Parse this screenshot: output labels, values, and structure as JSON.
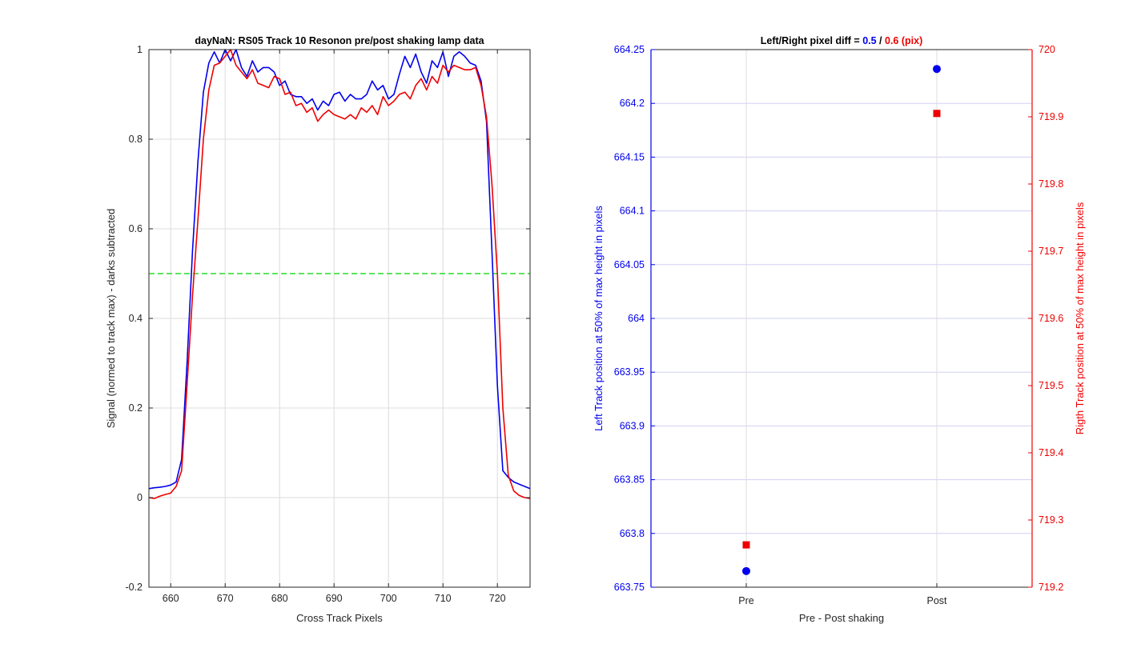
{
  "chart_data": [
    {
      "type": "line",
      "title": "dayNaN: RS05  Track 10 Resonon pre/post shaking lamp data",
      "xlabel": "Cross Track Pixels",
      "ylabel": "Signal (normed to track max) - darks subtracted",
      "xlim": [
        656,
        726
      ],
      "ylim": [
        -0.2,
        1
      ],
      "xticks": [
        "660",
        "670",
        "680",
        "690",
        "700",
        "710",
        "720"
      ],
      "yticks": [
        "-0.2",
        "0",
        "0.2",
        "0.4",
        "0.6",
        "0.8",
        "1"
      ],
      "grid": true,
      "reference_line": {
        "y": 0.5,
        "color": "#22dd22",
        "style": "dashed"
      },
      "series": [
        {
          "color": "#0000ee",
          "x": [
            656,
            657,
            658,
            659,
            660,
            661,
            662,
            663,
            664,
            665,
            666,
            667,
            668,
            669,
            670,
            671,
            672,
            673,
            674,
            675,
            676,
            677,
            678,
            679,
            680,
            681,
            682,
            683,
            684,
            685,
            686,
            687,
            688,
            689,
            690,
            691,
            692,
            693,
            694,
            695,
            696,
            697,
            698,
            699,
            700,
            701,
            702,
            703,
            704,
            705,
            706,
            707,
            708,
            709,
            710,
            711,
            712,
            713,
            714,
            715,
            716,
            717,
            718,
            719,
            720,
            721,
            722,
            723,
            724,
            725,
            726
          ],
          "values": [
            0.02,
            0.022,
            0.023,
            0.025,
            0.028,
            0.035,
            0.085,
            0.3,
            0.55,
            0.75,
            0.905,
            0.97,
            0.995,
            0.97,
            1.0,
            0.975,
            1.0,
            0.96,
            0.94,
            0.975,
            0.95,
            0.96,
            0.96,
            0.95,
            0.92,
            0.93,
            0.9,
            0.895,
            0.895,
            0.88,
            0.89,
            0.865,
            0.885,
            0.875,
            0.9,
            0.905,
            0.885,
            0.9,
            0.89,
            0.89,
            0.9,
            0.93,
            0.91,
            0.92,
            0.89,
            0.9,
            0.945,
            0.985,
            0.96,
            0.99,
            0.95,
            0.925,
            0.975,
            0.96,
            0.995,
            0.94,
            0.985,
            0.995,
            0.985,
            0.97,
            0.965,
            0.93,
            0.84,
            0.55,
            0.25,
            0.06,
            0.045,
            0.035,
            0.03,
            0.025,
            0.02
          ]
        },
        {
          "color": "#ee0000",
          "x": [
            656,
            657,
            658,
            659,
            660,
            661,
            662,
            663,
            664,
            665,
            666,
            667,
            668,
            669,
            670,
            671,
            672,
            673,
            674,
            675,
            676,
            677,
            678,
            679,
            680,
            681,
            682,
            683,
            684,
            685,
            686,
            687,
            688,
            689,
            690,
            691,
            692,
            693,
            694,
            695,
            696,
            697,
            698,
            699,
            700,
            701,
            702,
            703,
            704,
            705,
            706,
            707,
            708,
            709,
            710,
            711,
            712,
            713,
            714,
            715,
            716,
            717,
            718,
            719,
            720,
            721,
            722,
            723,
            724,
            725,
            726
          ],
          "values": [
            0.0,
            -0.002,
            0.003,
            0.007,
            0.01,
            0.025,
            0.06,
            0.25,
            0.45,
            0.62,
            0.8,
            0.91,
            0.965,
            0.97,
            0.985,
            1.0,
            0.965,
            0.95,
            0.935,
            0.955,
            0.925,
            0.92,
            0.915,
            0.94,
            0.935,
            0.9,
            0.905,
            0.875,
            0.88,
            0.86,
            0.87,
            0.84,
            0.855,
            0.865,
            0.855,
            0.85,
            0.845,
            0.855,
            0.845,
            0.87,
            0.86,
            0.875,
            0.855,
            0.895,
            0.875,
            0.885,
            0.9,
            0.905,
            0.89,
            0.92,
            0.935,
            0.91,
            0.94,
            0.925,
            0.965,
            0.95,
            0.965,
            0.96,
            0.955,
            0.955,
            0.96,
            0.92,
            0.85,
            0.7,
            0.5,
            0.2,
            0.05,
            0.015,
            0.005,
            0.0,
            -0.002
          ]
        }
      ]
    },
    {
      "type": "scatter",
      "title_parts": {
        "prefix": "Left/Right pixel diff = ",
        "left_value": "0.5",
        "separator": " / ",
        "right_value": "0.6 (pix)"
      },
      "xlabel": "Pre - Post shaking",
      "categories": [
        "Pre",
        "Post"
      ],
      "ylabel_left": "Left Track position at 50% of max height in pixels",
      "ylabel_right": "Rigth Track position at 50% of max height in pixels",
      "ylim_left": [
        663.75,
        664.25
      ],
      "ylim_right": [
        719.2,
        720
      ],
      "yticks_left": [
        "663.75",
        "663.8",
        "663.85",
        "663.9",
        "663.95",
        "664",
        "664.05",
        "664.1",
        "664.15",
        "664.2",
        "664.25"
      ],
      "yticks_right": [
        "719.2",
        "719.3",
        "719.4",
        "719.5",
        "719.6",
        "719.7",
        "719.8",
        "719.9",
        "720"
      ],
      "grid": true,
      "series": [
        {
          "axis": "left",
          "marker": "circle",
          "color": "#0000ee",
          "values": [
            663.765,
            664.232
          ]
        },
        {
          "axis": "right",
          "marker": "square",
          "color": "#ee0000",
          "values": [
            719.263,
            719.905
          ]
        }
      ]
    }
  ]
}
